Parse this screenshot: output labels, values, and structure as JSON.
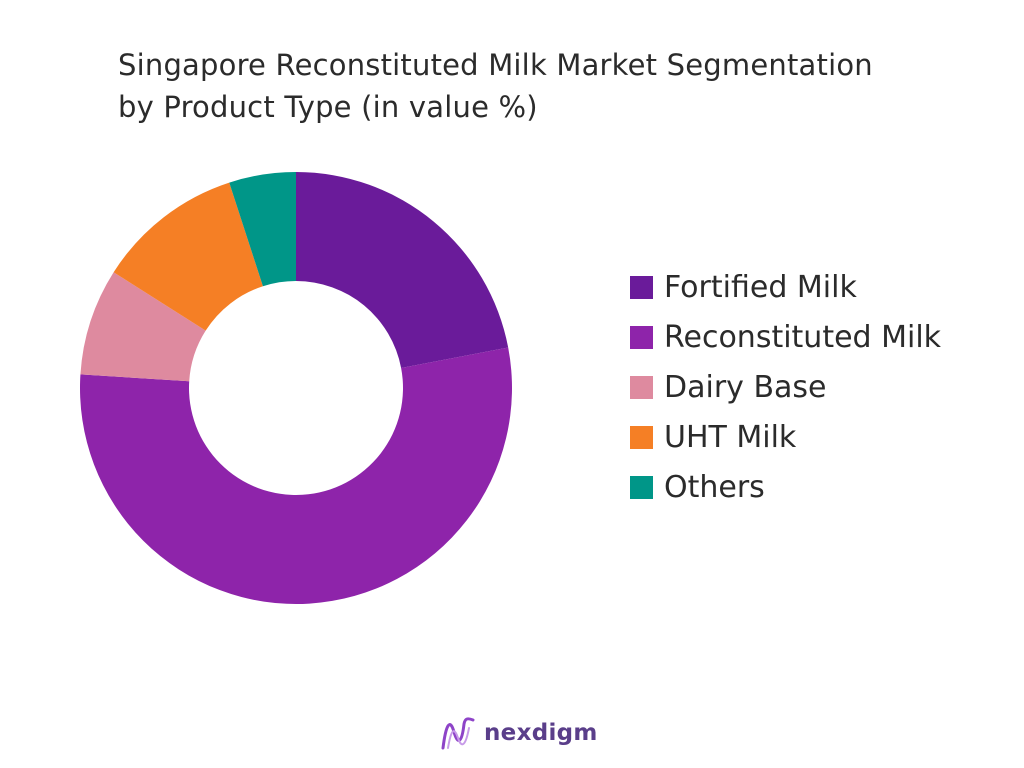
{
  "chart_data": {
    "type": "pie",
    "title_line1": "Singapore Reconstituted Milk Market Segmentation",
    "title_line2": "by Product Type (in value %)",
    "donut": true,
    "legend_position": "right",
    "series": [
      {
        "name": "Fortified Milk",
        "value": 22,
        "color": "#6a1b9a"
      },
      {
        "name": "Reconstituted Milk",
        "value": 54,
        "color": "#8e24aa"
      },
      {
        "name": "Dairy Base",
        "value": 8,
        "color": "#de8a9f"
      },
      {
        "name": "UHT Milk",
        "value": 11,
        "color": "#f57f25"
      },
      {
        "name": "Others",
        "value": 5,
        "color": "#009688"
      }
    ]
  },
  "logo": {
    "text": "nexdigm",
    "icon": "nexdigm-logo-icon"
  }
}
